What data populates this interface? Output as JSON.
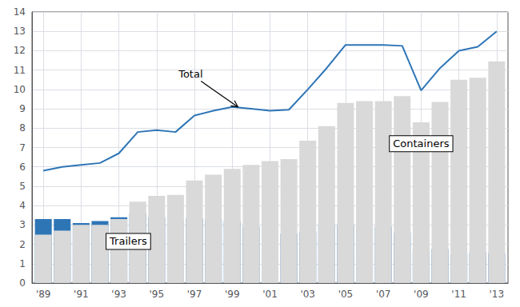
{
  "chart_data": {
    "type": "bar",
    "stacked": true,
    "grid": true,
    "x": [
      1989,
      1990,
      1991,
      1992,
      1993,
      1994,
      1995,
      1996,
      1997,
      1998,
      1999,
      2000,
      2001,
      2002,
      2003,
      2004,
      2005,
      2006,
      2007,
      2008,
      2009,
      2010,
      2011,
      2012,
      2013
    ],
    "series": [
      {
        "name": "Trailers",
        "type": "bar",
        "color": "#2e75b6",
        "values": [
          3.3,
          3.3,
          3.1,
          3.2,
          3.4,
          3.6,
          3.4,
          3.25,
          3.35,
          3.3,
          3.2,
          2.9,
          2.6,
          2.55,
          2.65,
          3.0,
          3.0,
          2.9,
          2.9,
          2.6,
          1.65,
          1.75,
          1.5,
          1.6,
          1.55
        ]
      },
      {
        "name": "Containers",
        "type": "bar",
        "color": "#d9d9d9",
        "values": [
          2.5,
          2.7,
          3.0,
          3.0,
          3.3,
          4.2,
          4.5,
          4.55,
          5.3,
          5.6,
          5.9,
          6.1,
          6.3,
          6.4,
          7.35,
          8.1,
          9.3,
          9.4,
          9.4,
          9.65,
          8.3,
          9.35,
          10.5,
          10.6,
          11.45
        ]
      },
      {
        "name": "Total",
        "type": "line",
        "color": "#2e75b6",
        "values": [
          5.8,
          6.0,
          6.1,
          6.2,
          6.7,
          7.8,
          7.9,
          7.8,
          8.65,
          8.9,
          9.1,
          9.0,
          8.9,
          8.95,
          10.0,
          11.1,
          12.3,
          12.3,
          12.3,
          12.25,
          9.95,
          11.1,
          12.0,
          12.2,
          13.0
        ]
      }
    ],
    "xlim": [
      1988.4,
      2013.6
    ],
    "xticks": [
      {
        "value": 1989,
        "label": "'89"
      },
      {
        "value": 1991,
        "label": "'91"
      },
      {
        "value": 1993,
        "label": "'93"
      },
      {
        "value": 1995,
        "label": "'95"
      },
      {
        "value": 1997,
        "label": "'97"
      },
      {
        "value": 1999,
        "label": "'99"
      },
      {
        "value": 2001,
        "label": "'01"
      },
      {
        "value": 2003,
        "label": "'03"
      },
      {
        "value": 2005,
        "label": "'05"
      },
      {
        "value": 2007,
        "label": "'07"
      },
      {
        "value": 2009,
        "label": "'09"
      },
      {
        "value": 2011,
        "label": "'11"
      },
      {
        "value": 2013,
        "label": "'13"
      }
    ],
    "ylim": [
      0,
      14
    ],
    "yticks": [
      0,
      1,
      2,
      3,
      4,
      5,
      6,
      7,
      8,
      9,
      10,
      11,
      12,
      13,
      14
    ],
    "annotations": [
      {
        "text": "Total",
        "x": 1996.8,
        "y": 10.8,
        "arrow_x": 1999.3,
        "arrow_y": 9.1
      },
      {
        "text": "Trailers",
        "x": 1993.5,
        "y": 2.15
      },
      {
        "text": "Containers",
        "x": 2009.0,
        "y": 7.2
      }
    ]
  }
}
